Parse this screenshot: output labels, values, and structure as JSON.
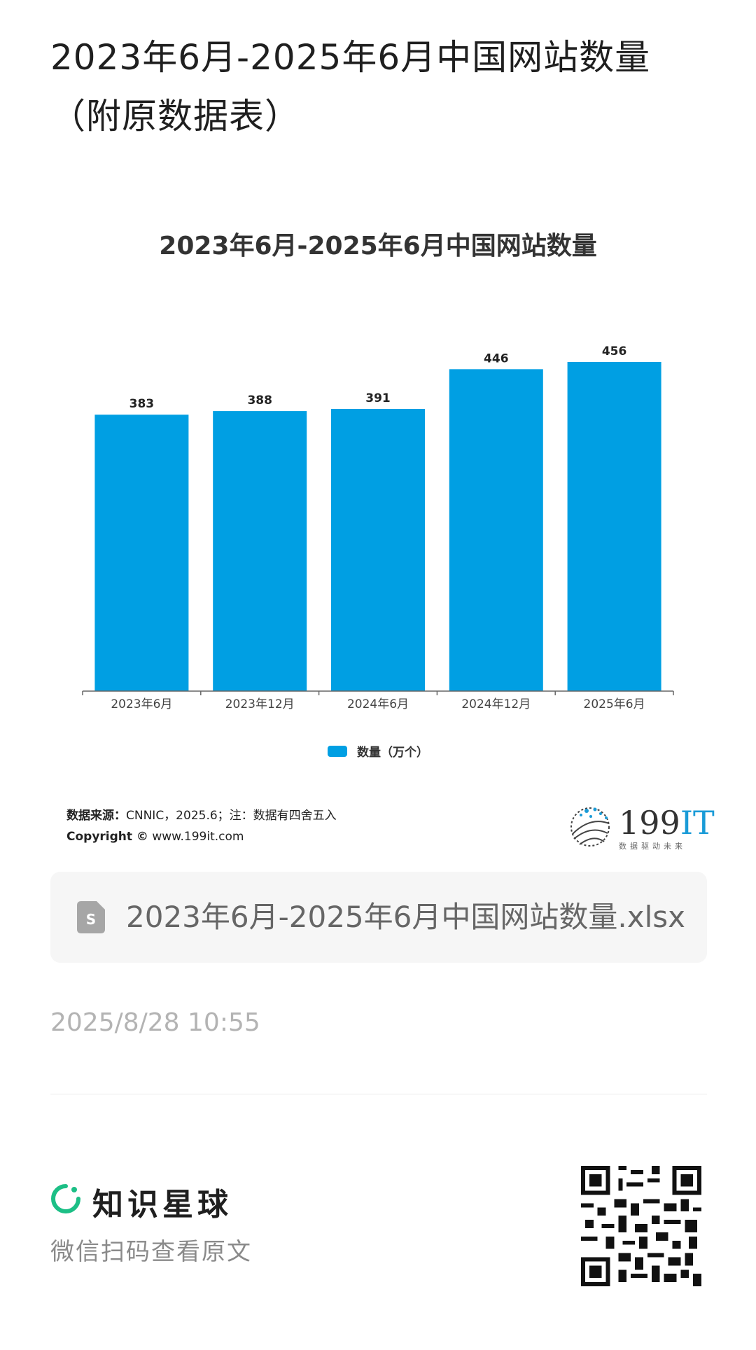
{
  "post": {
    "title": "2023年6月-2025年6月中国网站数量（附原数据表）",
    "time": "2025/8/28 10:55"
  },
  "chart_data": {
    "type": "bar",
    "title": "2023年6月-2025年6月中国网站数量",
    "categories": [
      "2023年6月",
      "2023年12月",
      "2024年6月",
      "2024年12月",
      "2025年6月"
    ],
    "series": [
      {
        "name": "数量（万个）",
        "values": [
          383,
          388,
          391,
          446,
          456
        ],
        "color": "#009fe3"
      }
    ],
    "ylim": [
      0,
      456
    ],
    "grid": false,
    "legend": "bottom-center",
    "data_labels": true
  },
  "source": {
    "label": "数据来源：",
    "text": "CNNIC，2025.6；注：数据有四舍五入",
    "copyright_label": "Copyright ©",
    "copyright_url": "www.199it.com"
  },
  "brand": {
    "name_number": "199",
    "name_letters": "IT",
    "slogan": "数据驱动未来"
  },
  "attachment": {
    "icon": "spreadsheet-file-icon",
    "filename": "2023年6月-2025年6月中国网站数量.xlsx"
  },
  "footer": {
    "app_name": "知识星球",
    "scan_hint": "微信扫码查看原文",
    "accent_color": "#1cbf86"
  }
}
